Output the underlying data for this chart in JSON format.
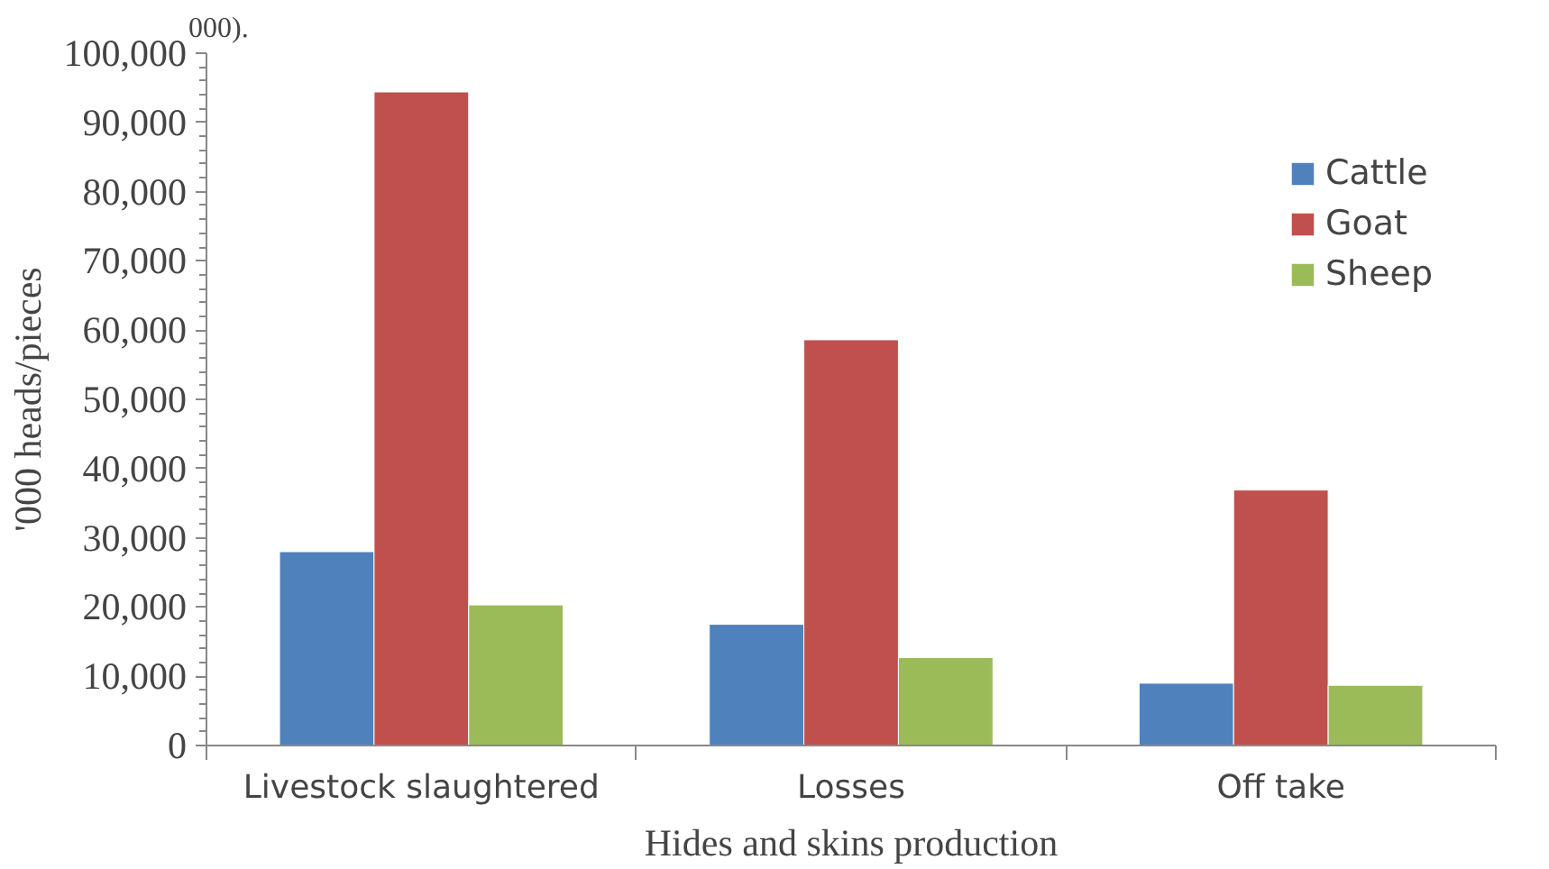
{
  "chart_data": {
    "type": "bar",
    "xlabel": "Hides and skins production",
    "ylabel": "'000 heads/pieces",
    "categories": [
      "Livestock slaughtered",
      "Losses",
      "Off take"
    ],
    "series": [
      {
        "name": "Cattle",
        "color": "#4f81bd",
        "values": [
          28000,
          17500,
          9000
        ]
      },
      {
        "name": "Goat",
        "color": "#c0504d",
        "values": [
          94400,
          58600,
          36900
        ]
      },
      {
        "name": "Sheep",
        "color": "#9bbb59",
        "values": [
          20300,
          12700,
          8700
        ]
      }
    ],
    "ylim": [
      0,
      100000
    ],
    "yticks": [
      {
        "value": 0,
        "label": "0"
      },
      {
        "value": 10000,
        "label": "10,000"
      },
      {
        "value": 20000,
        "label": "20,000"
      },
      {
        "value": 30000,
        "label": "30,000"
      },
      {
        "value": 40000,
        "label": "40,000"
      },
      {
        "value": 50000,
        "label": "50,000"
      },
      {
        "value": 60000,
        "label": "60,000"
      },
      {
        "value": 70000,
        "label": "70,000"
      },
      {
        "value": 80000,
        "label": "80,000"
      },
      {
        "value": 90000,
        "label": "90,000"
      },
      {
        "value": 100000,
        "label": "100,000"
      }
    ],
    "grid": false,
    "legend": "top right",
    "annotations": [
      "000)."
    ]
  }
}
